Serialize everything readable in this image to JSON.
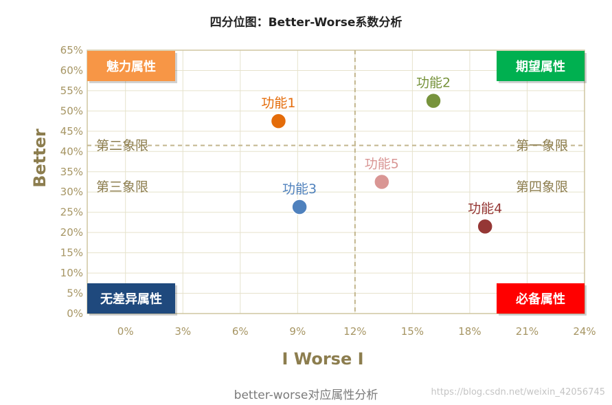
{
  "title": "四分位图：Better-Worse系数分析",
  "caption": "better-worse对应属性分析",
  "watermark": "https://blog.csdn.net/weixin_42056745",
  "colors": {
    "grid": "#e6e2cc",
    "frame": "#cfc6a0",
    "axis_text": "#a69563",
    "axis_title": "#8c7d4e",
    "quadrant_text": "#8c7d4e",
    "divider": "#c2b58c"
  },
  "chart_data": {
    "type": "scatter",
    "title": "四分位图：Better-Worse系数分析",
    "xlabel": "I Worse I",
    "ylabel": "Better",
    "xlim": [
      -0.02,
      0.24
    ],
    "ylim": [
      0,
      0.65
    ],
    "x_ticks": [
      0,
      0.03,
      0.06,
      0.09,
      0.12,
      0.15,
      0.18,
      0.21,
      0.24
    ],
    "x_tick_labels": [
      "0%",
      "3%",
      "6%",
      "9%",
      "12%",
      "15%",
      "18%",
      "21%",
      "24%"
    ],
    "y_ticks": [
      0,
      0.05,
      0.1,
      0.15,
      0.2,
      0.25,
      0.3,
      0.35,
      0.4,
      0.45,
      0.5,
      0.55,
      0.6,
      0.65
    ],
    "y_tick_labels": [
      "0%",
      "5%",
      "10%",
      "15%",
      "20%",
      "25%",
      "30%",
      "35%",
      "40%",
      "45%",
      "50%",
      "55%",
      "60%",
      "65%"
    ],
    "grid": true,
    "divider_x": 0.12,
    "divider_y": 0.415,
    "points": [
      {
        "label": "功能1",
        "x": 0.08,
        "y": 0.475,
        "color": "#e46c0a"
      },
      {
        "label": "功能2",
        "x": 0.161,
        "y": 0.525,
        "color": "#77933c"
      },
      {
        "label": "功能3",
        "x": 0.091,
        "y": 0.263,
        "color": "#4f81bd"
      },
      {
        "label": "功能4",
        "x": 0.188,
        "y": 0.215,
        "color": "#953735"
      },
      {
        "label": "功能5",
        "x": 0.134,
        "y": 0.325,
        "color": "#d99694"
      }
    ],
    "quadrant_labels": {
      "second": "第二象限",
      "first": "第一象限",
      "third": "第三象限",
      "fourth": "第四象限"
    },
    "corner_boxes": {
      "top_left": {
        "text": "魅力属性",
        "color": "#f79646"
      },
      "top_right": {
        "text": "期望属性",
        "color": "#00b050"
      },
      "bottom_left": {
        "text": "无差异属性",
        "color": "#1f497d"
      },
      "bottom_right": {
        "text": "必备属性",
        "color": "#ff0000"
      }
    }
  }
}
